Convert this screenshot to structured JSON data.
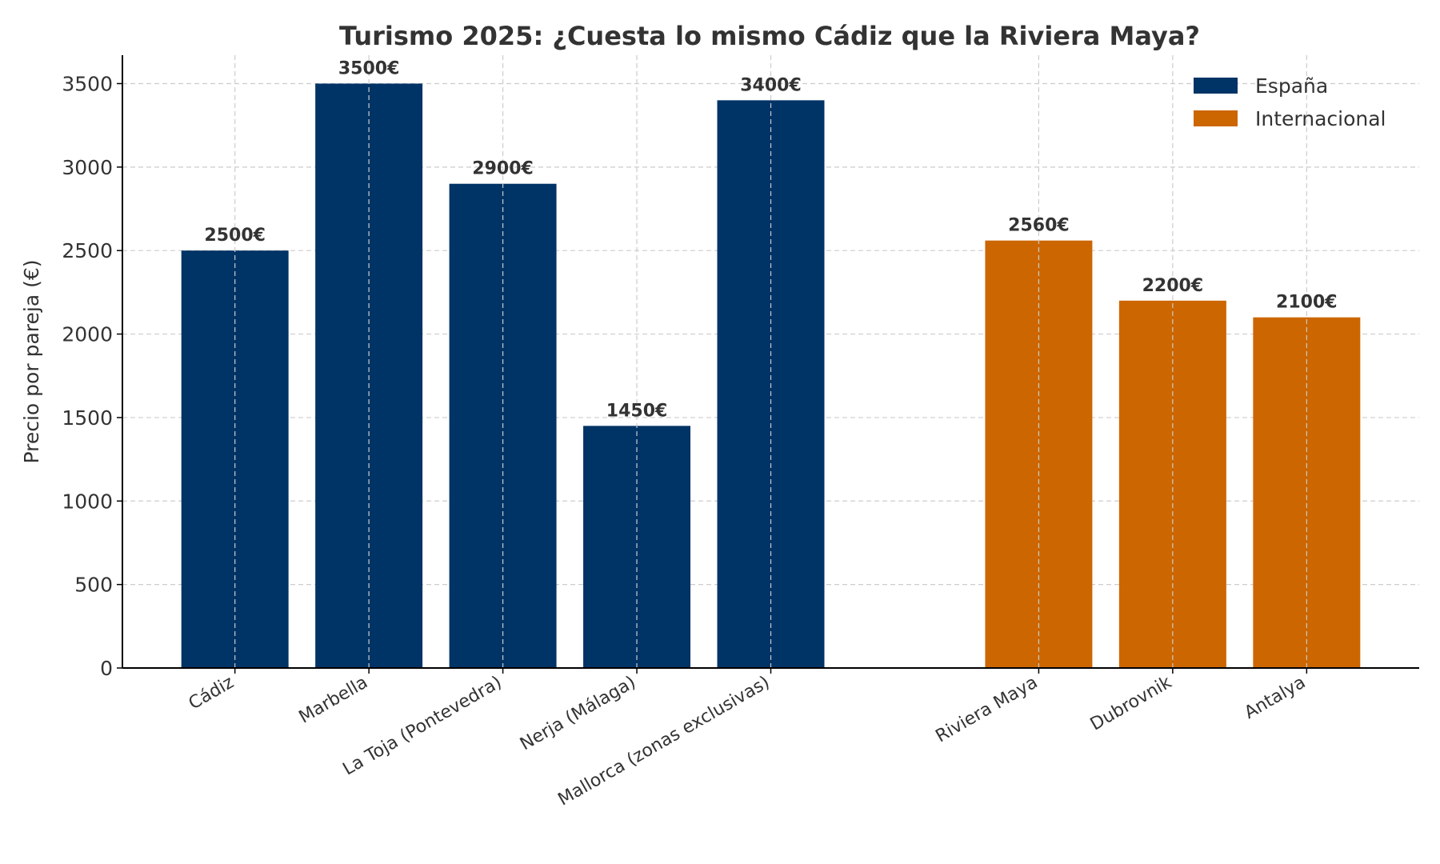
{
  "chart_data": {
    "type": "bar",
    "title": "Turismo 2025: ¿Cuesta lo mismo Cádiz que la Riviera Maya?",
    "xlabel": "",
    "ylabel": "Precio por pareja (€)",
    "ylim": [
      0,
      3670
    ],
    "yticks": [
      0,
      500,
      1000,
      1500,
      2000,
      2500,
      3000,
      3500
    ],
    "grid": true,
    "legend_placement": "top-right",
    "value_suffix": "€",
    "series": [
      {
        "name": "España",
        "color": "#003366",
        "categories": [
          "Cádiz",
          "Marbella",
          "La Toja (Pontevedra)",
          "Nerja (Málaga)",
          "Mallorca (zonas exclusivas)"
        ],
        "values": [
          2500,
          3500,
          2900,
          1450,
          3400
        ],
        "labels": [
          "2500€",
          "3500€",
          "2900€",
          "1450€",
          "3400€"
        ]
      },
      {
        "name": "Internacional",
        "color": "#CC6600",
        "categories": [
          "Riviera Maya",
          "Dubrovnik",
          "Antalya"
        ],
        "values": [
          2560,
          2200,
          2100
        ],
        "labels": [
          "2560€",
          "2200€",
          "2100€"
        ]
      }
    ]
  }
}
